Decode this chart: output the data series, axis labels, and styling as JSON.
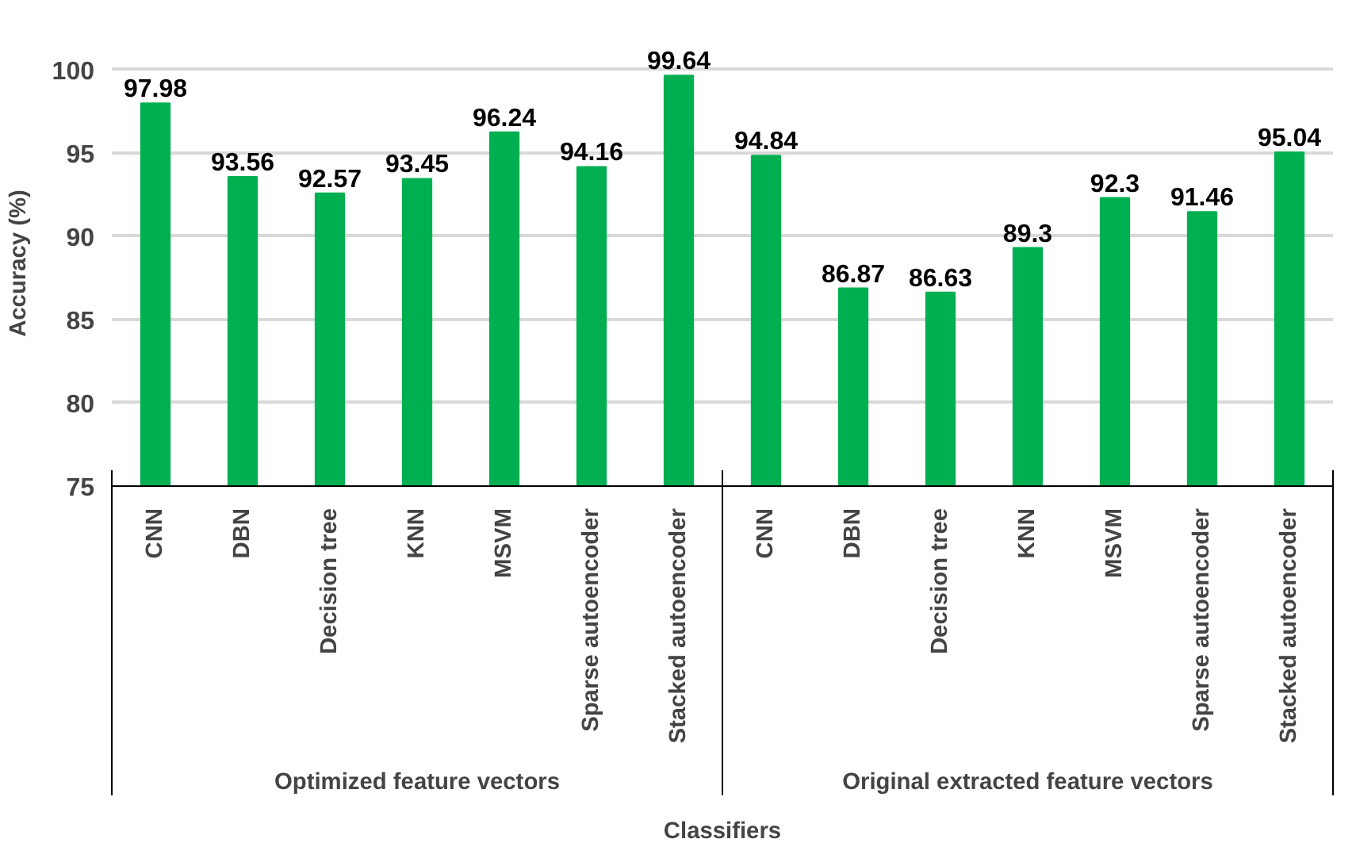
{
  "chart_data": {
    "type": "bar",
    "xlabel": "Classifiers",
    "ylabel": "Accuracy (%)",
    "categories": [
      "CNN",
      "DBN",
      "Decision tree",
      "KNN",
      "MSVM",
      "Sparse autoencoder",
      "Stacked autoencoder",
      "CNN",
      "DBN",
      "Decision tree",
      "KNN",
      "MSVM",
      "Sparse autoencoder",
      "Stacked autoencoder"
    ],
    "values": [
      97.98,
      93.56,
      92.57,
      93.45,
      96.24,
      94.16,
      99.64,
      94.84,
      86.87,
      86.63,
      89.3,
      92.3,
      91.46,
      95.04
    ],
    "color": "#00b050",
    "ylim": [
      75,
      100
    ],
    "yticks": [
      75,
      80,
      85,
      90,
      95,
      100
    ],
    "grid": "y",
    "data_labels": true,
    "annotations": [
      "Optimized feature vectors",
      "Original extracted feature vectors"
    ]
  }
}
